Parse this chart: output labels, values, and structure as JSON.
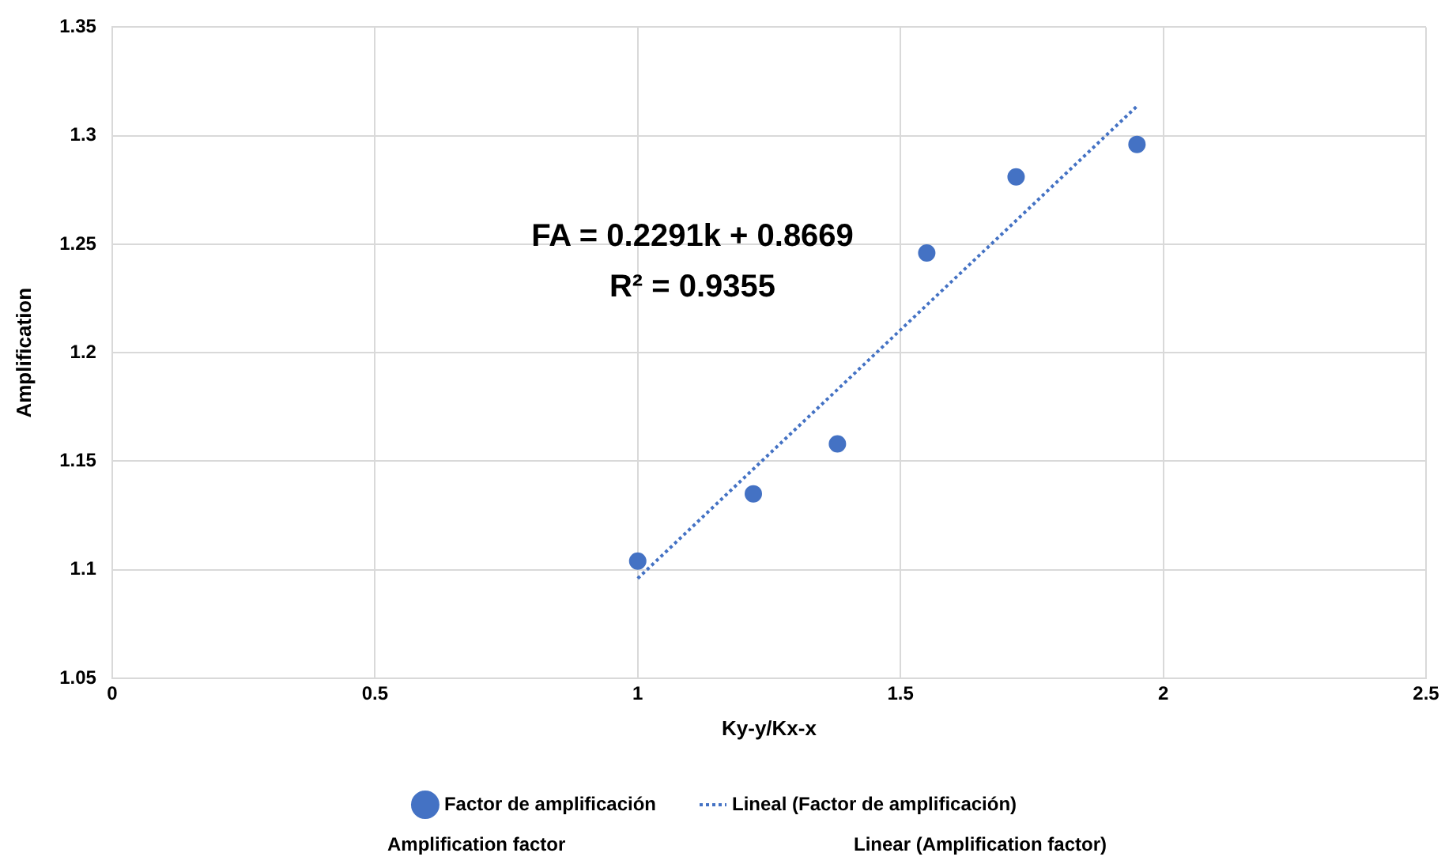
{
  "chart_data": {
    "type": "scatter",
    "xlabel": "Ky-y/Kx-x",
    "ylabel": "Amplification",
    "xlim": [
      0,
      2.5
    ],
    "xticks": [
      0,
      0.5,
      1,
      1.5,
      2,
      2.5
    ],
    "ylim": [
      1.05,
      1.35
    ],
    "yticks": [
      1.05,
      1.1,
      1.15,
      1.2,
      1.25,
      1.3,
      1.35
    ],
    "grid": true,
    "legend": "bottom",
    "series": [
      {
        "name": "Factor de amplificación",
        "color": "#4472c4",
        "marker": "circle",
        "x": [
          1.0,
          1.22,
          1.38,
          1.55,
          1.72,
          1.95
        ],
        "values": [
          1.104,
          1.135,
          1.158,
          1.246,
          1.281,
          1.296
        ]
      },
      {
        "name": "Lineal (Factor de amplificación)",
        "type": "line",
        "color": "#4472c4",
        "marker": "none",
        "line_style": "dotted",
        "x": [
          1.0,
          1.95
        ],
        "values": [
          1.096,
          1.3136
        ]
      }
    ],
    "annotations": [
      "FA = 0.2291k + 0.8669",
      "R² = 0.9355",
      "Amplification factor",
      "Linear (Amplification factor)"
    ]
  }
}
